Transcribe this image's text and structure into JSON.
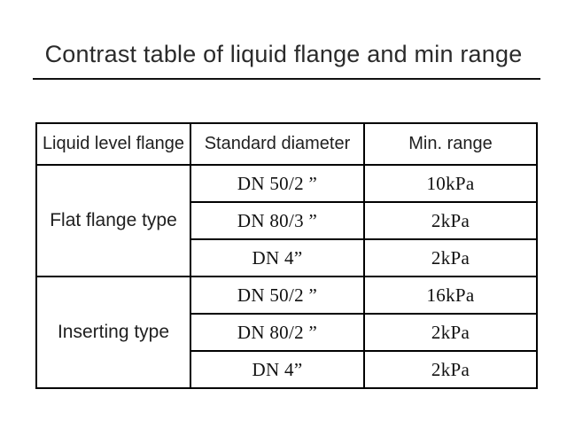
{
  "page": {
    "title": "Contrast table of liquid flange and min range"
  },
  "table": {
    "headers": [
      "Liquid level flange",
      "Standard diameter",
      "Min. range"
    ],
    "groups": [
      {
        "label": "Flat flange type",
        "rows": [
          {
            "diameter": "DN 50/2 ”",
            "range": "10kPa"
          },
          {
            "diameter": "DN 80/3 ”",
            "range": "2kPa"
          },
          {
            "diameter": "DN 4”",
            "range": "2kPa"
          }
        ]
      },
      {
        "label": "Inserting type",
        "rows": [
          {
            "diameter": "DN 50/2 ”",
            "range": "16kPa"
          },
          {
            "diameter": "DN 80/2 ”",
            "range": "2kPa"
          },
          {
            "diameter": "DN 4”",
            "range": "2kPa"
          }
        ]
      }
    ]
  },
  "colors": {
    "background": "#ffffff",
    "text": "#222222",
    "border": "#000000"
  }
}
